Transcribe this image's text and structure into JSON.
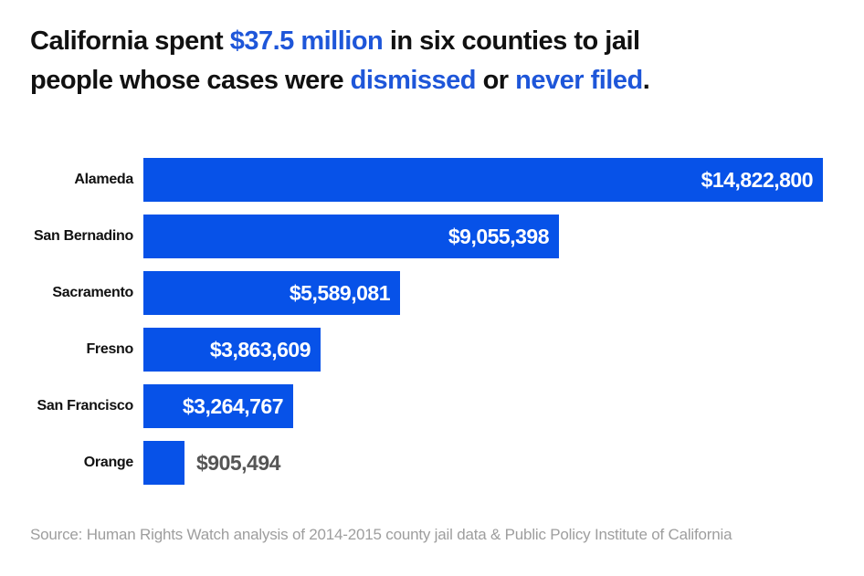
{
  "title": {
    "segments": [
      {
        "text": "California spent ",
        "em": false
      },
      {
        "text": "$37.5 million",
        "em": true
      },
      {
        "text": " in six counties to jail",
        "em": false
      },
      {
        "br": true
      },
      {
        "text": "people whose cases were ",
        "em": false
      },
      {
        "text": "dismissed",
        "em": true
      },
      {
        "text": " or ",
        "em": false
      },
      {
        "text": "never filed",
        "em": true
      },
      {
        "text": ".",
        "em": false
      }
    ]
  },
  "colors": {
    "bar_blue": "#0752e8",
    "title_blue": "#1e56d9",
    "title_dark": "#111111",
    "label_dark": "#111111",
    "value_inside": "#ffffff",
    "value_outside": "#555555",
    "source_gray": "#9e9e9e"
  },
  "chart_data": {
    "type": "bar",
    "orientation": "horizontal",
    "title": "California spent $37.5 million in six counties to jail people whose cases were dismissed or never filed.",
    "categories": [
      "Alameda",
      "San Bernadino",
      "Sacramento",
      "Fresno",
      "San Francisco",
      "Orange"
    ],
    "values": [
      14822800,
      9055398,
      5589081,
      3863609,
      3264767,
      905494
    ],
    "value_labels": [
      "$14,822,800",
      "$9,055,398",
      "$5,589,081",
      "$3,863,609",
      "$3,264,767",
      "$905,494"
    ],
    "label_positions": [
      "inside",
      "inside",
      "inside",
      "inside",
      "inside",
      "outside"
    ],
    "xlim": [
      0,
      14822800
    ],
    "xlabel": "",
    "ylabel": "",
    "grid": false,
    "legend": false
  },
  "source": "Source: Human Rights Watch analysis of 2014-2015 county jail data & Public Policy Institute of California"
}
